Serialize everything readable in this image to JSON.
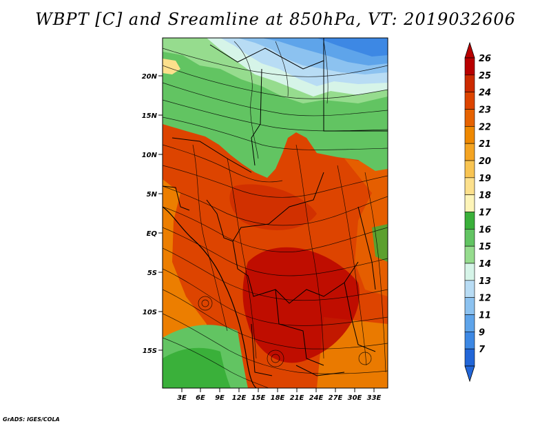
{
  "title": "WBPT [C] and Sreamline at 850hPa, VT: 2019032606",
  "credit": "GrADS: IGES/COLA",
  "map": {
    "lat_labels": [
      "20N",
      "15N",
      "10N",
      "5N",
      "EQ",
      "5S",
      "10S",
      "15S"
    ],
    "lon_labels": [
      "3E",
      "6E",
      "9E",
      "12E",
      "15E",
      "18E",
      "21E",
      "24E",
      "27E",
      "30E",
      "33E"
    ]
  },
  "colorbar": {
    "labels": [
      "26",
      "25",
      "24",
      "23",
      "22",
      "21",
      "20",
      "19",
      "18",
      "17",
      "16",
      "15",
      "14",
      "13",
      "12",
      "11",
      "9",
      "7"
    ],
    "colors": [
      "#b80000",
      "#cc2a00",
      "#dd4400",
      "#e66200",
      "#ee8800",
      "#f4a422",
      "#f8c452",
      "#fce08c",
      "#fdf4b8",
      "#3ab03a",
      "#62c462",
      "#96dc8e",
      "#d6f4e8",
      "#b8dcf4",
      "#8cc2f0",
      "#5ea4ea",
      "#3d88e4",
      "#2266d8"
    ]
  }
}
